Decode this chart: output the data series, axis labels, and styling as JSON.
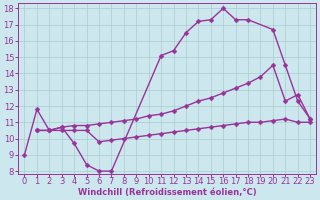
{
  "background_color": "#cce8ee",
  "line_color": "#993399",
  "grid_color": "#aacccc",
  "xlabel": "Windchill (Refroidissement éolien,°C)",
  "xlim": [
    -0.5,
    23.5
  ],
  "ylim": [
    7.8,
    18.3
  ],
  "xticks": [
    0,
    1,
    2,
    3,
    4,
    5,
    6,
    7,
    8,
    9,
    10,
    11,
    12,
    13,
    14,
    15,
    16,
    17,
    18,
    19,
    20,
    21,
    22,
    23
  ],
  "yticks": [
    8,
    9,
    10,
    11,
    12,
    13,
    14,
    15,
    16,
    17,
    18
  ],
  "series": [
    {
      "x": [
        0,
        1,
        2,
        3,
        4,
        5,
        6,
        7,
        11,
        12,
        13,
        14,
        15,
        16,
        17,
        18,
        20,
        21,
        22,
        23
      ],
      "y": [
        9,
        11.8,
        10.5,
        10.7,
        9.7,
        8.4,
        8.0,
        8.0,
        15.1,
        15.4,
        16.5,
        17.2,
        17.3,
        18.0,
        17.3,
        17.3,
        16.7,
        14.5,
        12.3,
        11.2
      ]
    },
    {
      "x": [
        1,
        2,
        3,
        4,
        5,
        6,
        7,
        8,
        9,
        10,
        11,
        12,
        13,
        14,
        15,
        16,
        17,
        18,
        19,
        20,
        21,
        22,
        23
      ],
      "y": [
        10.5,
        10.5,
        10.7,
        10.8,
        10.8,
        10.9,
        11.0,
        11.1,
        11.2,
        11.4,
        11.5,
        11.7,
        12.0,
        12.3,
        12.5,
        12.8,
        13.1,
        13.4,
        13.8,
        14.5,
        12.3,
        12.7,
        11.2
      ]
    },
    {
      "x": [
        1,
        2,
        3,
        4,
        5,
        6,
        7,
        8,
        9,
        10,
        11,
        12,
        13,
        14,
        15,
        16,
        17,
        18,
        19,
        20,
        21,
        22,
        23
      ],
      "y": [
        10.5,
        10.5,
        10.5,
        10.5,
        10.5,
        9.8,
        9.9,
        10.0,
        10.1,
        10.2,
        10.3,
        10.4,
        10.5,
        10.6,
        10.7,
        10.8,
        10.9,
        11.0,
        11.0,
        11.1,
        11.2,
        11.0,
        11.0
      ]
    }
  ],
  "tick_fontsize": 6,
  "xlabel_fontsize": 6,
  "linewidth": 1.0,
  "markersize": 2.5
}
